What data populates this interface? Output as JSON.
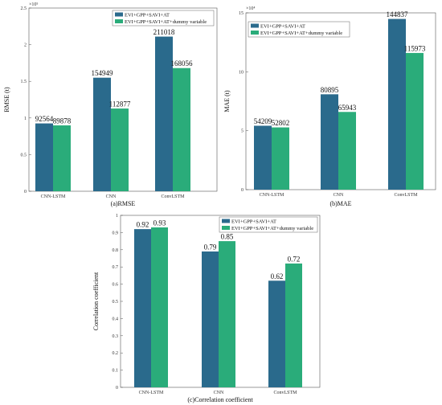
{
  "colors": {
    "series1": "#2a6a8c",
    "series2": "#2aac7a"
  },
  "chart_data": [
    {
      "id": "rmse",
      "type": "bar",
      "caption": "(a)RMSE",
      "ylabel": "RMSE (t)",
      "scale_label": "×10⁵",
      "categories": [
        "CNN-LSTM",
        "CNN",
        "ConvLSTM"
      ],
      "series": [
        {
          "name": "EVI+GPP+SAVI+AT",
          "values": [
            92564,
            154949,
            211018
          ]
        },
        {
          "name": "EVI+GPP+SAVI+AT+dummy variable",
          "values": [
            89878,
            112877,
            168056
          ]
        }
      ],
      "data_labels": [
        [
          "92564",
          "154949",
          "211018"
        ],
        [
          "89878",
          "112877",
          "168056"
        ]
      ],
      "ylim": [
        0,
        250000
      ],
      "yticks": [
        0,
        50000,
        100000,
        150000,
        200000,
        250000
      ],
      "ytick_labels": [
        "0",
        "0.5",
        "1",
        "1.5",
        "2",
        "2.5"
      ],
      "legend": "top-right"
    },
    {
      "id": "mae",
      "type": "bar",
      "caption": "(b)MAE",
      "ylabel": "MAE (t)",
      "scale_label": "×10⁴",
      "categories": [
        "CNN-LSTM",
        "CNN",
        "ConvLSTM"
      ],
      "series": [
        {
          "name": "EVI+GPP+SAVI+AT",
          "values": [
            54209,
            80895,
            144837
          ]
        },
        {
          "name": "EVI+GPP+SAVI+AT+dummy variable",
          "values": [
            52802,
            65943,
            115973
          ]
        }
      ],
      "data_labels": [
        [
          "54209",
          "80895",
          "144837"
        ],
        [
          "52802",
          "65943",
          "115973"
        ]
      ],
      "ylim": [
        0,
        150000
      ],
      "yticks": [
        0,
        50000,
        100000,
        150000
      ],
      "ytick_labels": [
        "0",
        "5",
        "10",
        "15"
      ],
      "legend": "top-left"
    },
    {
      "id": "corr",
      "type": "bar",
      "caption": "(c)Correlation coefficient",
      "ylabel": "Correlation coefficient",
      "scale_label": "",
      "categories": [
        "CNN-LSTM",
        "CNN",
        "ConvLSTM"
      ],
      "series": [
        {
          "name": "EVI+GPP+SAVI+AT",
          "values": [
            0.92,
            0.79,
            0.62
          ]
        },
        {
          "name": "EVI+GPP+SAVI+AT+dummy variable",
          "values": [
            0.93,
            0.85,
            0.72
          ]
        }
      ],
      "data_labels": [
        [
          "0.92",
          "0.79",
          "0.62"
        ],
        [
          "0.93",
          "0.85",
          "0.72"
        ]
      ],
      "ylim": [
        0,
        1
      ],
      "yticks": [
        0,
        0.1,
        0.2,
        0.3,
        0.4,
        0.5,
        0.6,
        0.7,
        0.8,
        0.9,
        1
      ],
      "ytick_labels": [
        "0",
        "0.1",
        "0.2",
        "0.3",
        "0.4",
        "0.5",
        "0.6",
        "0.7",
        "0.8",
        "0.9",
        "1"
      ],
      "legend": "top-right"
    }
  ]
}
